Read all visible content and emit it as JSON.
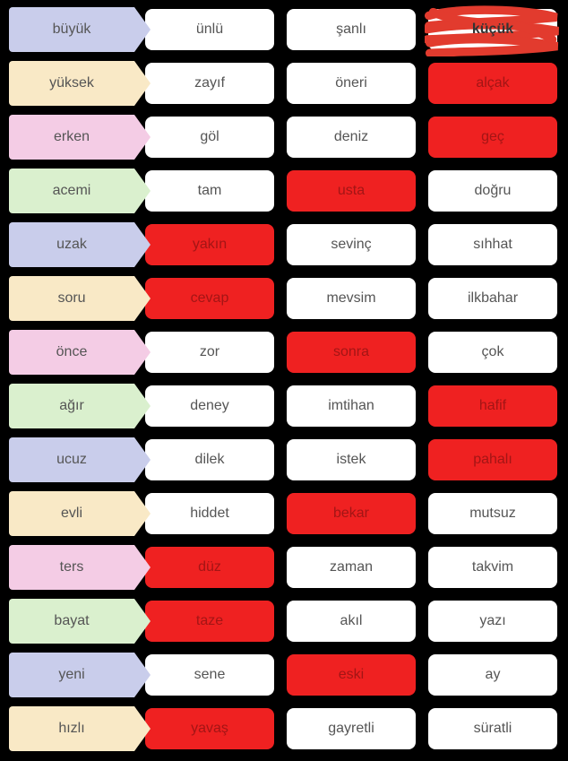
{
  "colors": {
    "lavender": "#c9cdeb",
    "cream": "#f9e9c6",
    "pink": "#f4cce5",
    "mint": "#daf0ce",
    "sel_bg": "#ef2121",
    "sel_text": "#a31515"
  },
  "prompt_color_cycle": [
    "lavender",
    "cream",
    "pink",
    "mint"
  ],
  "rows": [
    {
      "prompt": "büyük",
      "cards": [
        {
          "text": "ünlü"
        },
        {
          "text": "şanlı"
        },
        {
          "text": "küçük",
          "scribble": true
        }
      ]
    },
    {
      "prompt": "yüksek",
      "cards": [
        {
          "text": "zayıf"
        },
        {
          "text": "öneri"
        },
        {
          "text": "alçak",
          "sel": true
        }
      ]
    },
    {
      "prompt": "erken",
      "cards": [
        {
          "text": "göl"
        },
        {
          "text": "deniz"
        },
        {
          "text": "geç",
          "sel": true
        }
      ]
    },
    {
      "prompt": "acemi",
      "cards": [
        {
          "text": "tam"
        },
        {
          "text": "usta",
          "sel": true
        },
        {
          "text": "doğru"
        }
      ]
    },
    {
      "prompt": "uzak",
      "cards": [
        {
          "text": "yakın",
          "sel": true
        },
        {
          "text": "sevinç"
        },
        {
          "text": "sıhhat"
        }
      ]
    },
    {
      "prompt": "soru",
      "cards": [
        {
          "text": "cevap",
          "sel": true
        },
        {
          "text": "mevsim"
        },
        {
          "text": "ilkbahar"
        }
      ]
    },
    {
      "prompt": "önce",
      "cards": [
        {
          "text": "zor"
        },
        {
          "text": "sonra",
          "sel": true
        },
        {
          "text": "çok"
        }
      ]
    },
    {
      "prompt": "ağır",
      "cards": [
        {
          "text": "deney"
        },
        {
          "text": "imtihan"
        },
        {
          "text": "hafif",
          "sel": true
        }
      ]
    },
    {
      "prompt": "ucuz",
      "cards": [
        {
          "text": "dilek"
        },
        {
          "text": "istek"
        },
        {
          "text": "pahalı",
          "sel": true
        }
      ]
    },
    {
      "prompt": "evli",
      "cards": [
        {
          "text": "hiddet"
        },
        {
          "text": "bekar",
          "sel": true
        },
        {
          "text": "mutsuz"
        }
      ]
    },
    {
      "prompt": "ters",
      "cards": [
        {
          "text": "düz",
          "sel": true
        },
        {
          "text": "zaman"
        },
        {
          "text": "takvim"
        }
      ]
    },
    {
      "prompt": "bayat",
      "cards": [
        {
          "text": "taze",
          "sel": true
        },
        {
          "text": "akıl"
        },
        {
          "text": "yazı"
        }
      ]
    },
    {
      "prompt": "yeni",
      "cards": [
        {
          "text": "sene"
        },
        {
          "text": "eski",
          "sel": true
        },
        {
          "text": "ay"
        }
      ]
    },
    {
      "prompt": "hızlı",
      "cards": [
        {
          "text": "yavaş",
          "sel": true
        },
        {
          "text": "gayretli"
        },
        {
          "text": "süratli"
        }
      ]
    }
  ]
}
